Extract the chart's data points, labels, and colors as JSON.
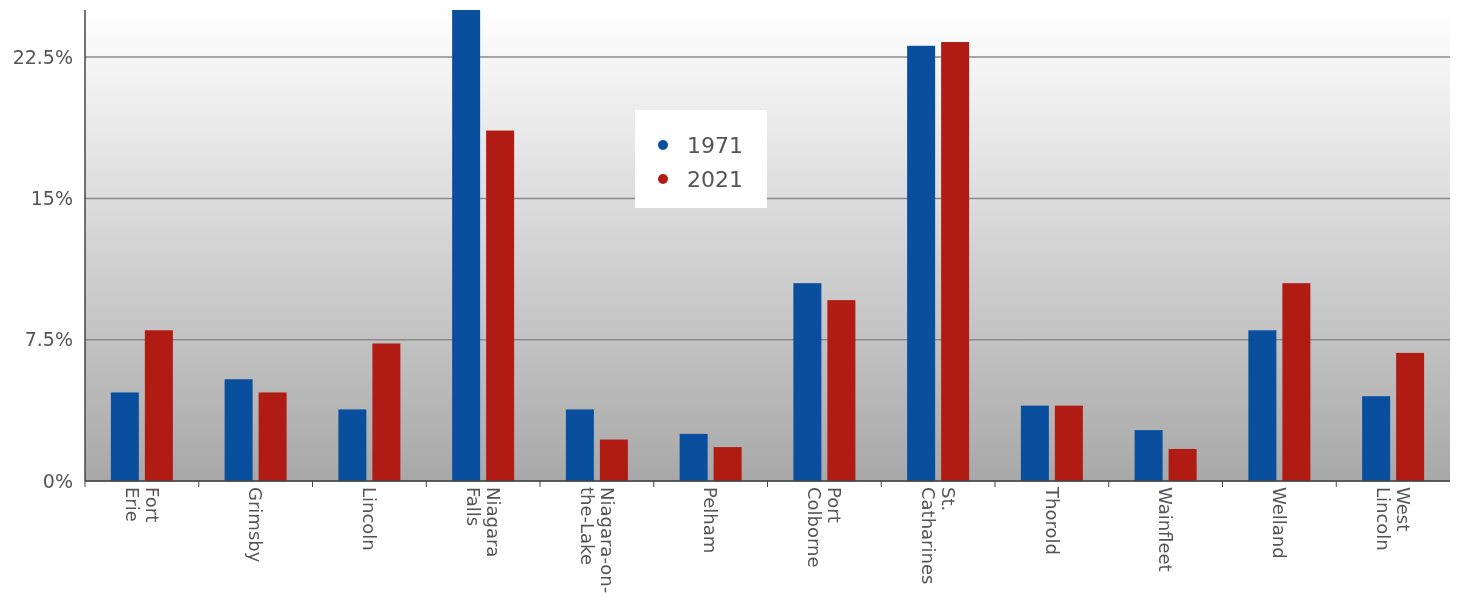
{
  "chart_data": {
    "type": "bar",
    "categories": [
      "Fort Erie",
      "Grimsby",
      "Lincoln",
      "Niagara Falls",
      "Niagara-on-the-Lake",
      "Pelham",
      "Port Colborne",
      "St. Catharines",
      "Thorold",
      "Wainfleet",
      "Welland",
      "West Lincoln"
    ],
    "series": [
      {
        "name": "1971",
        "color": "#0a4f9e",
        "values": [
          4.7,
          5.4,
          3.8,
          25,
          3.8,
          2.5,
          10.5,
          23.1,
          4.0,
          2.7,
          8.0,
          4.5
        ]
      },
      {
        "name": "2021",
        "color": "#b01c14",
        "values": [
          8.0,
          4.7,
          7.3,
          18.6,
          2.2,
          1.8,
          9.6,
          23.3,
          4.0,
          1.7,
          10.5,
          6.8
        ]
      }
    ],
    "ylim": [
      0,
      25
    ],
    "yticks": [
      {
        "value": 0,
        "label": "0%"
      },
      {
        "value": 7.5,
        "label": "7.5%"
      },
      {
        "value": 15,
        "label": "15%"
      },
      {
        "value": 22.5,
        "label": "22.5%"
      }
    ],
    "grid": "y",
    "legend": "top"
  }
}
